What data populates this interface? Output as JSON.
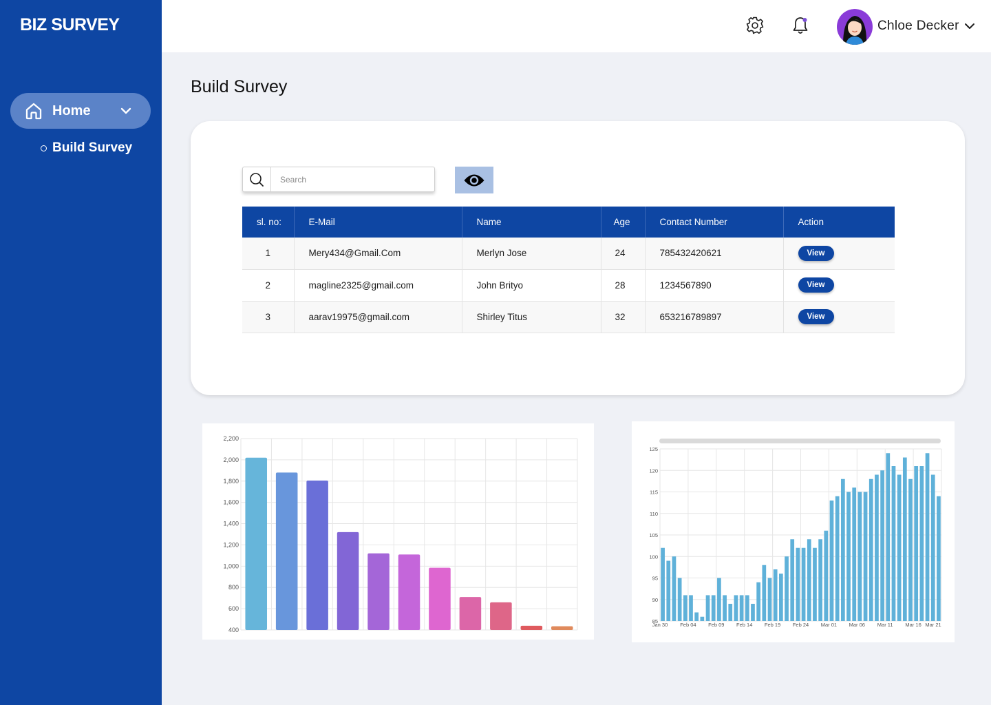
{
  "brand": "BIZ SURVEY",
  "sidebar": {
    "home_label": "Home",
    "sub_items": [
      {
        "label": "Build Survey"
      }
    ]
  },
  "header": {
    "user_name": "Chloe Decker",
    "icons": [
      "gear-icon",
      "bell-icon",
      "avatar",
      "chevron-down-icon"
    ]
  },
  "page_title": "Build Survey",
  "search": {
    "placeholder": "Search"
  },
  "table": {
    "columns": [
      "sl. no:",
      "E-Mail",
      "Name",
      "Age",
      "Contact Number",
      "Action"
    ],
    "rows": [
      {
        "sl": "1",
        "email": "Mery434@Gmail.Com",
        "name": "Merlyn Jose",
        "age": "24",
        "contact": "785432420621",
        "action": "View"
      },
      {
        "sl": "2",
        "email": "magline2325@gmail.com",
        "name": "John Brityo",
        "age": "28",
        "contact": "1234567890",
        "action": "View"
      },
      {
        "sl": "3",
        "email": "aarav19975@gmail.com",
        "name": "Shirley Titus",
        "age": "32",
        "contact": "653216789897",
        "action": "View"
      }
    ]
  },
  "colors": {
    "primary": "#0e46a3",
    "sidebar_active": "#5b83c8",
    "eye_button": "#a9c0e3",
    "bar_chart2": "#5fb1d9"
  },
  "chart_data": [
    {
      "type": "bar",
      "values": [
        2020,
        1880,
        1805,
        1320,
        1120,
        1110,
        985,
        710,
        660,
        440,
        435
      ],
      "colors": [
        "#66b5da",
        "#6896dc",
        "#6a6fd8",
        "#8266d6",
        "#a466d8",
        "#c466da",
        "#de66d0",
        "#dc66a8",
        "#de6688",
        "#df5a5e",
        "#e08a5c"
      ],
      "ylim": [
        400,
        2200
      ],
      "yticks": [
        "2,200",
        "2,000",
        "1,800",
        "1,600",
        "1,400",
        "1,200",
        "1,000",
        "800",
        "600",
        "400"
      ],
      "grid": true
    },
    {
      "type": "bar",
      "x_tick_labels": [
        "Jan 30",
        "Feb 04",
        "Feb 09",
        "Feb 14",
        "Feb 19",
        "Feb 24",
        "Mar 01",
        "Mar 06",
        "Mar 11",
        "Mar 16",
        "Mar 21"
      ],
      "values": [
        102,
        99,
        100,
        95,
        91,
        91,
        87,
        86,
        91,
        91,
        95,
        91,
        89,
        91,
        91,
        91,
        89,
        94,
        98,
        95,
        97,
        96,
        100,
        104,
        102,
        102,
        104,
        102,
        104,
        106,
        113,
        114,
        118,
        115,
        116,
        115,
        115,
        118,
        119,
        120,
        124,
        121,
        119,
        123,
        118,
        121,
        121,
        124,
        119,
        114
      ],
      "ylim": [
        85,
        125
      ],
      "yticks": [
        "125",
        "120",
        "115",
        "110",
        "105",
        "100",
        "95",
        "90",
        "85"
      ],
      "grid": true
    }
  ]
}
